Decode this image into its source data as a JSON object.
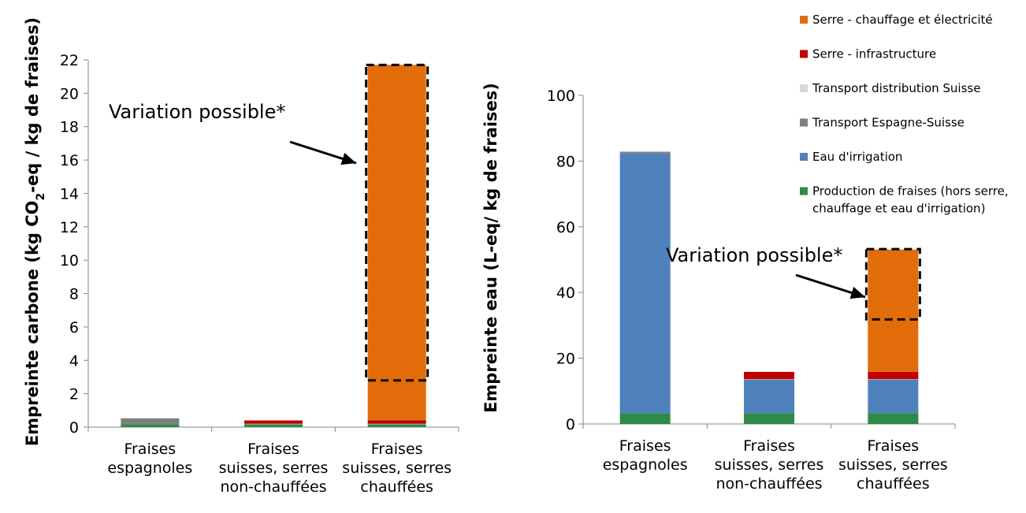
{
  "colors": {
    "serre_chauffage": "#E36C0A",
    "serre_infra": "#C00000",
    "transport_suisse": "#D9D9D9",
    "transport_esp": "#808080",
    "irrigation": "#4F81BD",
    "production": "#2E8B47"
  },
  "legend": [
    {
      "key": "serre_chauffage",
      "lines": [
        "Serre - chauffage et électricité"
      ]
    },
    {
      "key": "serre_infra",
      "lines": [
        "Serre - infrastructure"
      ]
    },
    {
      "key": "transport_suisse",
      "lines": [
        "Transport distribution Suisse"
      ]
    },
    {
      "key": "transport_esp",
      "lines": [
        "Transport Espagne-Suisse"
      ]
    },
    {
      "key": "irrigation",
      "lines": [
        "Eau d'irrigation"
      ]
    },
    {
      "key": "production",
      "lines": [
        "Production de fraises (hors serre,",
        "chauffage et eau d'irrigation)"
      ]
    }
  ],
  "chart_data": [
    {
      "type": "bar",
      "stacked": true,
      "ylabel_parts": [
        "Empreinte carbone (kg CO",
        "2",
        "-eq / kg de fraises)"
      ],
      "ylim": [
        0,
        22
      ],
      "yticks": [
        0,
        2,
        4,
        6,
        8,
        10,
        12,
        14,
        16,
        18,
        20,
        22
      ],
      "categories": [
        [
          "Fraises",
          "espagnoles"
        ],
        [
          "Fraises",
          "suisses, serres",
          "non-chauffées"
        ],
        [
          "Fraises",
          "suisses, serres",
          "chauffées"
        ]
      ],
      "series": [
        {
          "key": "production",
          "name": "Production de fraises (hors serre, chauffage et eau d'irrigation)",
          "values": [
            0.18,
            0.18,
            0.18
          ]
        },
        {
          "key": "irrigation",
          "name": "Eau d'irrigation",
          "values": [
            0.0,
            0.0,
            0.0
          ]
        },
        {
          "key": "transport_esp",
          "name": "Transport Espagne-Suisse",
          "values": [
            0.35,
            0.0,
            0.0
          ]
        },
        {
          "key": "transport_suisse",
          "name": "Transport distribution Suisse",
          "values": [
            0.02,
            0.02,
            0.02
          ]
        },
        {
          "key": "serre_infra",
          "name": "Serre - infrastructure",
          "values": [
            0.0,
            0.2,
            0.2
          ]
        },
        {
          "key": "serre_chauffage",
          "name": "Serre - chauffage et électricité",
          "values": [
            0.0,
            0.0,
            21.3
          ]
        }
      ],
      "variation": {
        "category_index": 2,
        "range": [
          2.8,
          21.7
        ]
      },
      "annotation": {
        "text": "Variation possible*",
        "arrow_target": 16
      }
    },
    {
      "type": "bar",
      "stacked": true,
      "ylabel_parts": [
        "Empreinte eau (L-eq/ kg de fraises)"
      ],
      "ylim": [
        0,
        100
      ],
      "yticks": [
        0,
        20,
        40,
        60,
        80,
        100
      ],
      "categories": [
        [
          "Fraises",
          "espagnoles"
        ],
        [
          "Fraises",
          "suisses, serres",
          "non-chauffées"
        ],
        [
          "Fraises",
          "suisses, serres",
          "chauffées"
        ]
      ],
      "series": [
        {
          "key": "production",
          "name": "Production de fraises (hors serre, chauffage et eau d'irrigation)",
          "values": [
            3.3,
            3.3,
            3.3
          ]
        },
        {
          "key": "irrigation",
          "name": "Eau d'irrigation",
          "values": [
            79.0,
            10.3,
            10.3
          ]
        },
        {
          "key": "transport_esp",
          "name": "Transport Espagne-Suisse",
          "values": [
            0.6,
            0.0,
            0.0
          ]
        },
        {
          "key": "transport_suisse",
          "name": "Transport distribution Suisse",
          "values": [
            0.05,
            0.05,
            0.05
          ]
        },
        {
          "key": "serre_infra",
          "name": "Serre - infrastructure",
          "values": [
            0.0,
            2.2,
            2.2
          ]
        },
        {
          "key": "serre_chauffage",
          "name": "Serre - chauffage et électricité",
          "values": [
            0.0,
            0.0,
            37.2
          ]
        }
      ],
      "variation": {
        "category_index": 2,
        "range": [
          31.8,
          53.2
        ]
      },
      "annotation": {
        "text": "Variation possible*",
        "arrow_target": 40
      }
    }
  ]
}
